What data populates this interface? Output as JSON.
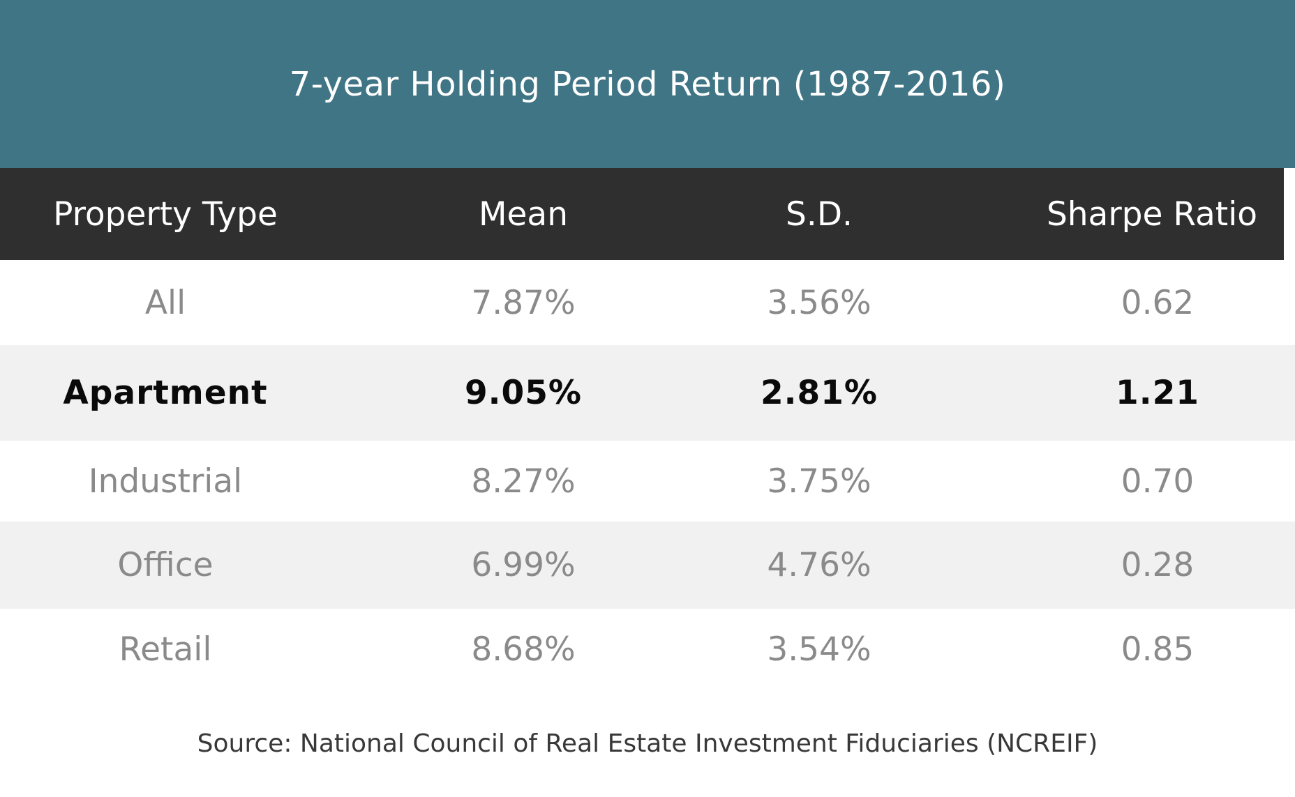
{
  "chart_data": {
    "type": "table",
    "title": "7-year Holding Period Return (1987-2016)",
    "columns": [
      "Property Type",
      "Mean",
      "S.D.",
      "Sharpe Ratio"
    ],
    "rows": [
      [
        "All",
        "7.87%",
        "3.56%",
        "0.62"
      ],
      [
        "Apartment",
        "9.05%",
        "2.81%",
        "1.21"
      ],
      [
        "Industrial",
        "8.27%",
        "3.75%",
        "0.70"
      ],
      [
        "Office",
        "6.99%",
        "4.76%",
        "0.28"
      ],
      [
        "Retail",
        "8.68%",
        "3.54%",
        "0.85"
      ]
    ],
    "highlighted_row": "Apartment",
    "source": "Source: National Council of Real Estate Investment Fiduciaries (NCREIF)",
    "layout_hints": {
      "header_style": "dark bar, white text",
      "zebra_striping": true,
      "highlight_style": "bold black text"
    }
  },
  "colors": {
    "banner_bg": "#407586",
    "header_bg": "#2f2f2f",
    "alt_row_bg": "#f1f1f1",
    "muted_text": "#8a8a8a",
    "emphasis_text": "#0a0a0a",
    "title_text": "#ffffff",
    "source_text": "#383838"
  }
}
